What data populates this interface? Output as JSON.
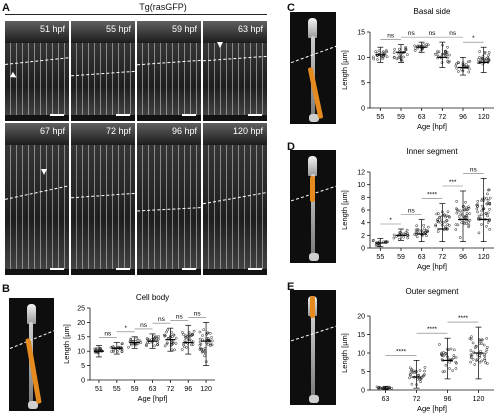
{
  "panels": {
    "A": {
      "letter": "A",
      "title": "Tg(rasGFP)",
      "timepoints": [
        "51 hpf",
        "55 hpf",
        "59 hpf",
        "63 hpf",
        "67 hpf",
        "72 hpf",
        "96 hpf",
        "120 hpf"
      ]
    },
    "B": {
      "letter": "B"
    },
    "C": {
      "letter": "C"
    },
    "D": {
      "letter": "D"
    },
    "E": {
      "letter": "E"
    }
  },
  "chart_data": [
    {
      "panel": "B",
      "type": "scatter",
      "title": "Cell body",
      "xlabel": "Age [hpf]",
      "ylabel": "Length [µm]",
      "categories": [
        "51",
        "55",
        "59",
        "63",
        "72",
        "96",
        "120"
      ],
      "ylim": [
        0,
        25
      ],
      "yticks": [
        0,
        5,
        10,
        15,
        20,
        25
      ],
      "center": [
        10,
        11,
        13,
        13.5,
        14,
        13,
        13.5
      ],
      "range": [
        [
          8,
          12
        ],
        [
          9,
          13
        ],
        [
          11,
          15
        ],
        [
          11,
          16
        ],
        [
          10,
          18
        ],
        [
          9,
          19
        ],
        [
          5,
          20
        ]
      ],
      "significance": [
        {
          "between": [
            0,
            1
          ],
          "label": "ns"
        },
        {
          "between": [
            1,
            2
          ],
          "label": "*"
        },
        {
          "between": [
            2,
            3
          ],
          "label": "ns"
        },
        {
          "between": [
            3,
            4
          ],
          "label": "ns"
        },
        {
          "between": [
            4,
            5
          ],
          "label": "ns"
        },
        {
          "between": [
            5,
            6
          ],
          "label": "ns"
        }
      ]
    },
    {
      "panel": "C",
      "type": "scatter",
      "title": "Basal side",
      "xlabel": "Age [hpf]",
      "ylabel": "Length [µm]",
      "categories": [
        "55",
        "59",
        "63",
        "72",
        "96",
        "120"
      ],
      "ylim": [
        0,
        15
      ],
      "yticks": [
        0,
        5,
        10,
        15
      ],
      "center": [
        10.5,
        11,
        12,
        10,
        8,
        9
      ],
      "range": [
        [
          9,
          12
        ],
        [
          9,
          12.5
        ],
        [
          11,
          13
        ],
        [
          8,
          13
        ],
        [
          6.5,
          10
        ],
        [
          7,
          12
        ]
      ],
      "significance": [
        {
          "between": [
            0,
            1
          ],
          "label": "ns"
        },
        {
          "between": [
            1,
            2
          ],
          "label": "ns"
        },
        {
          "between": [
            2,
            3
          ],
          "label": "ns"
        },
        {
          "between": [
            3,
            4
          ],
          "label": "ns"
        },
        {
          "between": [
            4,
            5
          ],
          "label": "*"
        }
      ]
    },
    {
      "panel": "D",
      "type": "scatter",
      "title": "Inner segment",
      "xlabel": "Age [hpf]",
      "ylabel": "Length [µm]",
      "categories": [
        "55",
        "59",
        "63",
        "72",
        "96",
        "120"
      ],
      "ylim": [
        0,
        12
      ],
      "yticks": [
        0,
        2,
        4,
        6,
        8,
        10,
        12
      ],
      "center": [
        0.8,
        2,
        2.2,
        3,
        4.5,
        4.5
      ],
      "range": [
        [
          0.2,
          1.5
        ],
        [
          1.2,
          3
        ],
        [
          1,
          4.5
        ],
        [
          1,
          7
        ],
        [
          1,
          9
        ],
        [
          1,
          11
        ]
      ],
      "significance": [
        {
          "between": [
            0,
            1
          ],
          "label": "*"
        },
        {
          "between": [
            1,
            2
          ],
          "label": "ns"
        },
        {
          "between": [
            2,
            3
          ],
          "label": "****"
        },
        {
          "between": [
            3,
            4
          ],
          "label": "***"
        },
        {
          "between": [
            4,
            5
          ],
          "label": "ns"
        }
      ]
    },
    {
      "panel": "E",
      "type": "scatter",
      "title": "Outer segment",
      "xlabel": "Age [hpf]",
      "ylabel": "Length [µm]",
      "categories": [
        "63",
        "72",
        "96",
        "120"
      ],
      "ylim": [
        0,
        20
      ],
      "yticks": [
        0,
        5,
        10,
        15,
        20
      ],
      "center": [
        0.5,
        3.5,
        8,
        10
      ],
      "range": [
        [
          0.2,
          1
        ],
        [
          0.5,
          8
        ],
        [
          3,
          14
        ],
        [
          3,
          17
        ]
      ],
      "significance": [
        {
          "between": [
            0,
            1
          ],
          "label": "****"
        },
        {
          "between": [
            1,
            2
          ],
          "label": "****"
        },
        {
          "between": [
            2,
            3
          ],
          "label": "****"
        }
      ]
    }
  ]
}
